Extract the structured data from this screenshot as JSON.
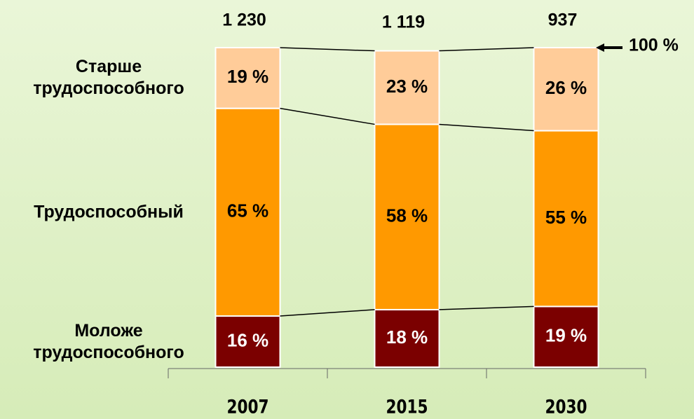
{
  "chart_data": {
    "type": "stacked_bar",
    "categories": [
      "2007",
      "2015",
      "2030"
    ],
    "series": [
      {
        "name": "Моложе трудоспособного",
        "color": "#7b0000",
        "label_color": "#ffffff",
        "values": [
          16,
          18,
          19
        ],
        "value_labels": [
          "16 %",
          "18 %",
          "19 %"
        ]
      },
      {
        "name": "Трудоспособный",
        "color": "#ff9900",
        "label_color": "#000000",
        "values": [
          65,
          58,
          55
        ],
        "value_labels": [
          "65 %",
          "58 %",
          "55 %"
        ]
      },
      {
        "name": "Старше трудоспособного",
        "color": "#ffcc99",
        "label_color": "#000000",
        "values": [
          19,
          23,
          26
        ],
        "value_labels": [
          "19 %",
          "23 %",
          "26 %"
        ]
      }
    ],
    "totals": {
      "values": [
        1230,
        1119,
        937
      ],
      "value_labels": [
        "1 230",
        "1 119",
        "937"
      ]
    },
    "annotation": "100 %",
    "ylim": [
      0,
      100
    ]
  }
}
